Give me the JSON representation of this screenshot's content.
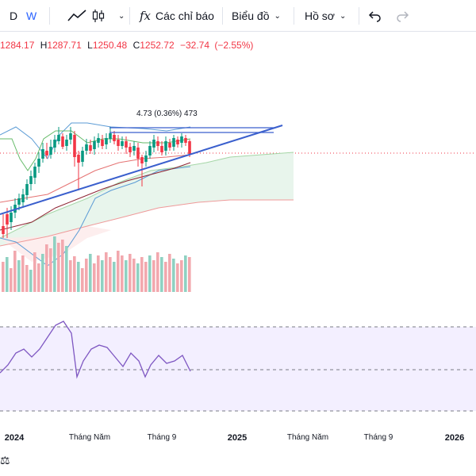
{
  "toolbar": {
    "interval_d": "D",
    "interval_w": "W",
    "indicators_label": "Các chỉ báo",
    "chart_type_label": "Biểu đồ",
    "profile_label": "Hồ sơ"
  },
  "ohlc": {
    "open": "1284.17",
    "high_label": "H",
    "high": "1287.71",
    "low_label": "L",
    "low": "1250.48",
    "close_label": "C",
    "close": "1252.72",
    "change": "−32.74",
    "change_pct": "(−2.55%)"
  },
  "measure_label": "4.73 (0.36%) 473",
  "time_axis": [
    "2024",
    "Tháng Năm",
    "Tháng 9",
    "2025",
    "Tháng Năm",
    "Tháng 9",
    "2026"
  ],
  "bottom_icon_glyph": "⚖",
  "colors": {
    "up": "#089981",
    "down": "#f23645",
    "trendline": "#3a5fcd",
    "rsi_fill": "#f3efff",
    "rsi_line": "#7e57c2"
  }
}
